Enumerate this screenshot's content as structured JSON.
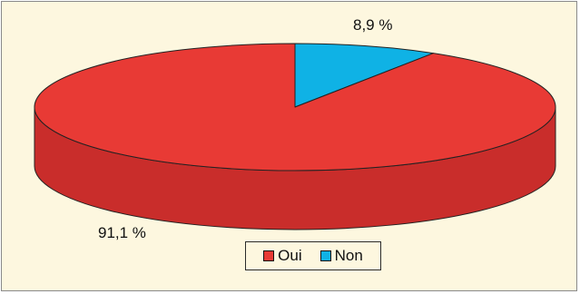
{
  "chart_data": {
    "type": "pie",
    "title": "",
    "three_d": true,
    "slices": [
      {
        "label": "Oui",
        "value": 91.1,
        "value_label": "91,1 %",
        "color": "#e83a35",
        "side_color": "#c92d2b"
      },
      {
        "label": "Non",
        "value": 8.9,
        "value_label": "8,9 %",
        "color": "#0fb2e5",
        "side_color": "#0b8db5"
      }
    ],
    "legend": {
      "position": "bottom",
      "items": [
        {
          "label": "Oui",
          "color": "#e83a35"
        },
        {
          "label": "Non",
          "color": "#0fb2e5"
        }
      ]
    }
  },
  "colors": {
    "background": "#fdf7df",
    "outline": "#222222",
    "border": "#8a8a8a"
  }
}
